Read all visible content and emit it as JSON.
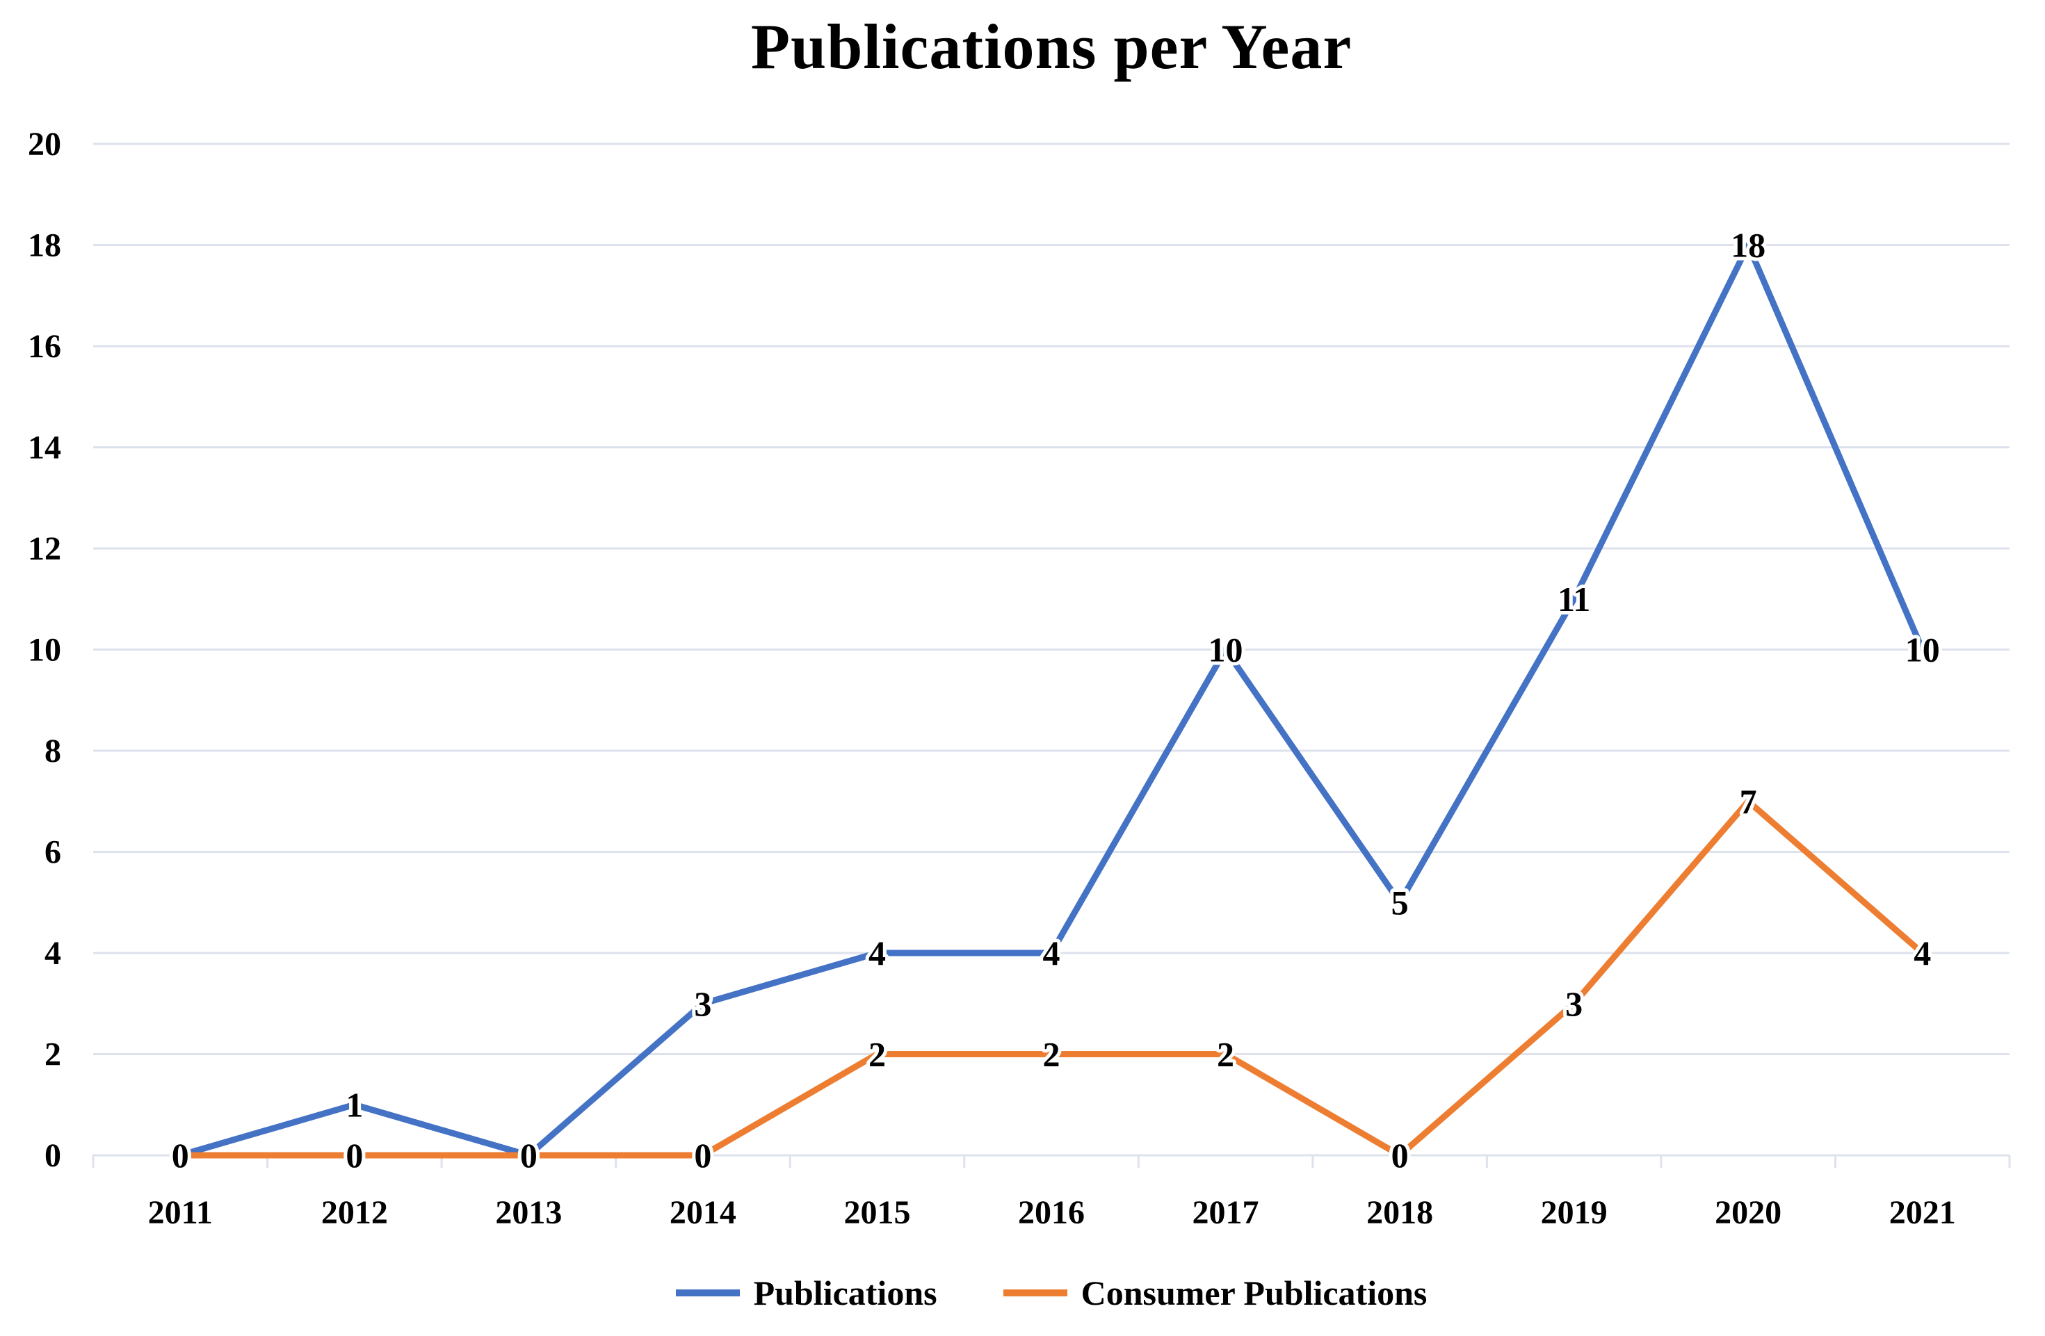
{
  "chart_data": {
    "type": "line",
    "title": "Publications per Year",
    "categories": [
      "2011",
      "2012",
      "2013",
      "2014",
      "2015",
      "2016",
      "2017",
      "2018",
      "2019",
      "2020",
      "2021"
    ],
    "series": [
      {
        "name": "Publications",
        "color": "#4472C4",
        "values": [
          0,
          1,
          0,
          3,
          4,
          4,
          10,
          5,
          11,
          18,
          10
        ]
      },
      {
        "name": "Consumer Publications",
        "color": "#ED7D31",
        "values": [
          0,
          0,
          0,
          0,
          2,
          2,
          2,
          0,
          3,
          7,
          4
        ]
      }
    ],
    "ylim": [
      0,
      20
    ],
    "yticks": [
      0,
      2,
      4,
      6,
      8,
      10,
      12,
      14,
      16,
      18,
      20
    ],
    "xlabel": "",
    "ylabel": "",
    "grid": "horizontal",
    "gridline_color": "#dde2ec",
    "tick_color": "#dde2ec",
    "label_color": "#000000",
    "data_labels": true,
    "legend_position": "bottom",
    "x_placement": "between-ticks"
  }
}
